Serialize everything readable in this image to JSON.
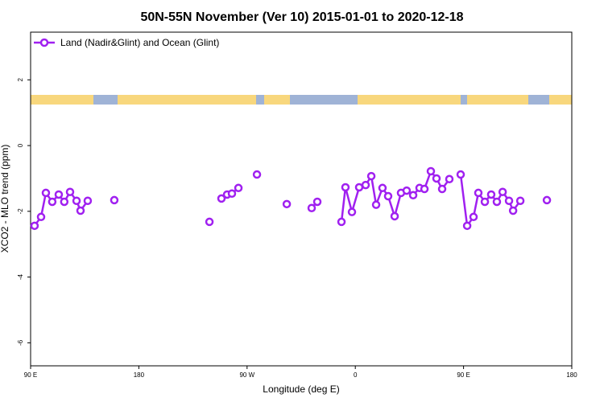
{
  "chart_data": {
    "type": "line",
    "title": "50N-55N November (Ver 10)   2015-01-01 to 2020-12-18",
    "x_label": "Longitude (deg E)",
    "y_label": "XCO2 - MLO trend (ppm)",
    "xlim": [
      90,
      540
    ],
    "ylim": [
      -6.7,
      3.45
    ],
    "xticks": [
      {
        "value": 90,
        "label": "90 E"
      },
      180,
      {
        "value": 270,
        "label": "90 W"
      },
      {
        "value": 360,
        "label": "0"
      },
      {
        "value": 450,
        "label": "90 E"
      },
      {
        "value": 540,
        "label": "180"
      }
    ],
    "yticks": [
      -6,
      -4,
      -2,
      0,
      2
    ],
    "legend": "top-left",
    "series": [
      {
        "name": "Land (Nadir&Glint) and Ocean (Glint)",
        "color": "#a020f0",
        "x": [
          93.3,
          98.7,
          102.7,
          108,
          113.4,
          118,
          122.8,
          128.2,
          131.5,
          137.5,
          null,
          159.6,
          null,
          238.7,
          null,
          248.7,
          253.4,
          257.4,
          262.8,
          null,
          278.2,
          null,
          303,
          null,
          323.7,
          328.4,
          null,
          348.5,
          351.8,
          357.2,
          363.2,
          368.6,
          373.3,
          377.3,
          382.6,
          387.3,
          392.7,
          398,
          402.7,
          408.1,
          413.4,
          417.5,
          422.8,
          427.5,
          432.2,
          438.2,
          null,
          447.6,
          453,
          458.3,
          462.3,
          467.7,
          473,
          477.7,
          482.5,
          487.8,
          491.2,
          497.2,
          null,
          519.3
        ],
        "values": [
          -2.44,
          -2.17,
          -1.44,
          -1.71,
          -1.49,
          -1.71,
          -1.41,
          -1.68,
          -1.98,
          -1.68,
          null,
          -1.66,
          null,
          -2.32,
          null,
          -1.61,
          -1.49,
          -1.46,
          -1.29,
          null,
          -0.88,
          null,
          -1.78,
          null,
          -1.9,
          -1.71,
          null,
          -2.32,
          -1.27,
          -2.02,
          -1.27,
          -1.2,
          -0.93,
          -1.8,
          -1.29,
          -1.54,
          -2.15,
          -1.44,
          -1.37,
          -1.51,
          -1.29,
          -1.32,
          -0.78,
          -1.0,
          -1.32,
          -1.02,
          null,
          -0.88,
          -2.44,
          -2.17,
          -1.44,
          -1.71,
          -1.49,
          -1.71,
          -1.41,
          -1.68,
          -1.98,
          -1.68,
          null,
          -1.66
        ]
      }
    ]
  }
}
